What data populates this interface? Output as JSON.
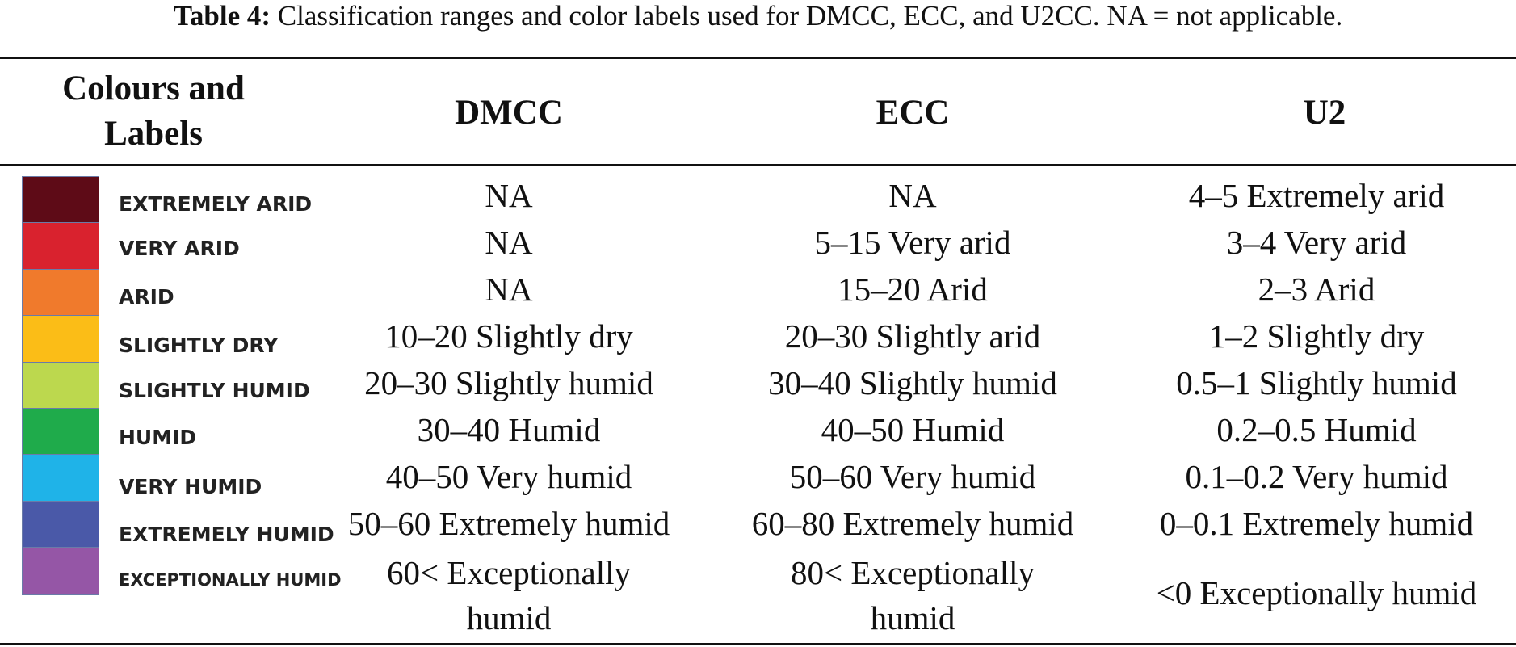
{
  "caption": {
    "label": "Table 4:",
    "text": " Classification ranges and color labels used for DMCC, ECC, and U2CC. NA = not applicable."
  },
  "headers": {
    "colours": "Colours and Labels",
    "dmcc": "DMCC",
    "ecc": "ECC",
    "u2": "U2"
  },
  "rows": [
    {
      "color": "#5e0b17",
      "label": "EXTREMELY ARID",
      "dmcc": "NA",
      "ecc": "NA",
      "u2": "4–5 Extremely arid"
    },
    {
      "color": "#d9222e",
      "label": "VERY ARID",
      "dmcc": "NA",
      "ecc": "5–15 Very arid",
      "u2": "3–4 Very arid"
    },
    {
      "color": "#f07a2c",
      "label": "ARID",
      "dmcc": "NA",
      "ecc": "15–20 Arid",
      "u2": "2–3 Arid"
    },
    {
      "color": "#fbbd17",
      "label": "SLIGHTLY DRY",
      "dmcc": "10–20 Slightly dry",
      "ecc": "20–30 Slightly arid",
      "u2": "1–2 Slightly dry"
    },
    {
      "color": "#bcd84e",
      "label": "SLIGHTLY HUMID",
      "dmcc": "20–30 Slightly humid",
      "ecc": "30–40 Slightly humid",
      "u2": "0.5–1 Slightly humid"
    },
    {
      "color": "#1fab4b",
      "label": "HUMID",
      "dmcc": "30–40 Humid",
      "ecc": "40–50 Humid",
      "u2": "0.2–0.5 Humid"
    },
    {
      "color": "#1fb3e8",
      "label": "VERY HUMID",
      "dmcc": "40–50 Very humid",
      "ecc": "50–60 Very humid",
      "u2": "0.1–0.2 Very humid"
    },
    {
      "color": "#4a59a8",
      "label": "EXTREMELY HUMID",
      "dmcc": "50–60 Extremely humid",
      "ecc": "60–80 Extremely humid",
      "u2": "0–0.1 Extremely humid"
    },
    {
      "color": "#9556a6",
      "label": "EXCEPTIONALLY HUMID",
      "dmcc": "60< Exceptionally humid",
      "ecc": "80< Exceptionally humid",
      "u2": "<0 Exceptionally humid"
    }
  ]
}
